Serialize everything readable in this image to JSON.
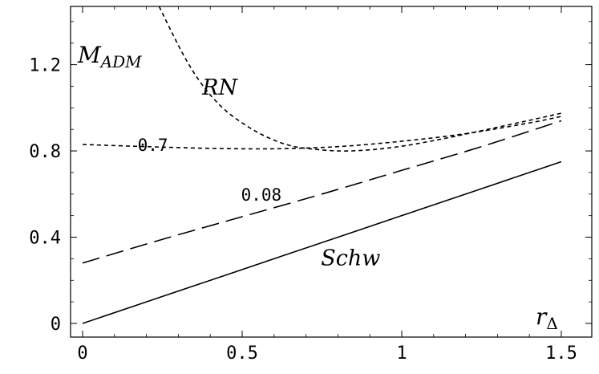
{
  "chart_data": {
    "type": "line",
    "xlim": [
      0,
      1.5
    ],
    "ylim": [
      0,
      1.5
    ],
    "x_ticks": [
      {
        "value": 0,
        "label": "0"
      },
      {
        "value": 0.5,
        "label": "0.5"
      },
      {
        "value": 1,
        "label": "1"
      },
      {
        "value": 1.5,
        "label": "1.5"
      }
    ],
    "y_ticks": [
      {
        "value": 0,
        "label": "0"
      },
      {
        "value": 0.4,
        "label": "0.4"
      },
      {
        "value": 0.8,
        "label": "0.8"
      },
      {
        "value": 1.2,
        "label": "1.2"
      }
    ],
    "xlabel": {
      "main": "r",
      "sub": "Δ"
    },
    "ylabel": {
      "main": "M",
      "sub": "ADM"
    },
    "grid": false,
    "series": [
      {
        "name": "Schw",
        "style": "solid",
        "x": [
          0,
          0.25,
          0.5,
          0.75,
          1.0,
          1.25,
          1.5
        ],
        "y": [
          0,
          0.125,
          0.25,
          0.375,
          0.5,
          0.625,
          0.75
        ]
      },
      {
        "name": "0.08",
        "style": "long-dash",
        "x": [
          0,
          0.25,
          0.5,
          0.75,
          1.0,
          1.25,
          1.5
        ],
        "y": [
          0.28,
          0.39,
          0.495,
          0.6,
          0.71,
          0.82,
          0.94
        ]
      },
      {
        "name": "0.7",
        "style": "short-dash",
        "x": [
          0,
          0.2,
          0.4,
          0.6,
          0.8,
          1.0,
          1.2,
          1.4,
          1.5
        ],
        "y": [
          0.83,
          0.82,
          0.812,
          0.81,
          0.82,
          0.845,
          0.88,
          0.93,
          0.96
        ]
      },
      {
        "name": "RN",
        "style": "short-dash",
        "x": [
          0.23,
          0.3,
          0.35,
          0.4,
          0.45,
          0.5,
          0.55,
          0.6,
          0.65,
          0.7,
          0.8,
          0.9,
          1.0,
          1.1,
          1.2,
          1.3,
          1.4,
          1.5
        ],
        "y": [
          1.5,
          1.29,
          1.16,
          1.06,
          0.985,
          0.93,
          0.885,
          0.85,
          0.825,
          0.812,
          0.8,
          0.805,
          0.822,
          0.848,
          0.878,
          0.91,
          0.942,
          0.975
        ]
      }
    ],
    "annotations": [
      {
        "text": "RN",
        "x": 0.43,
        "y": 1.06,
        "italic": true
      },
      {
        "text": "0.7",
        "x": 0.22,
        "y": 0.8,
        "italic": false
      },
      {
        "text": "0.08",
        "x": 0.56,
        "y": 0.57,
        "italic": false
      },
      {
        "text": "Schw",
        "x": 0.84,
        "y": 0.27,
        "italic": true
      }
    ]
  }
}
